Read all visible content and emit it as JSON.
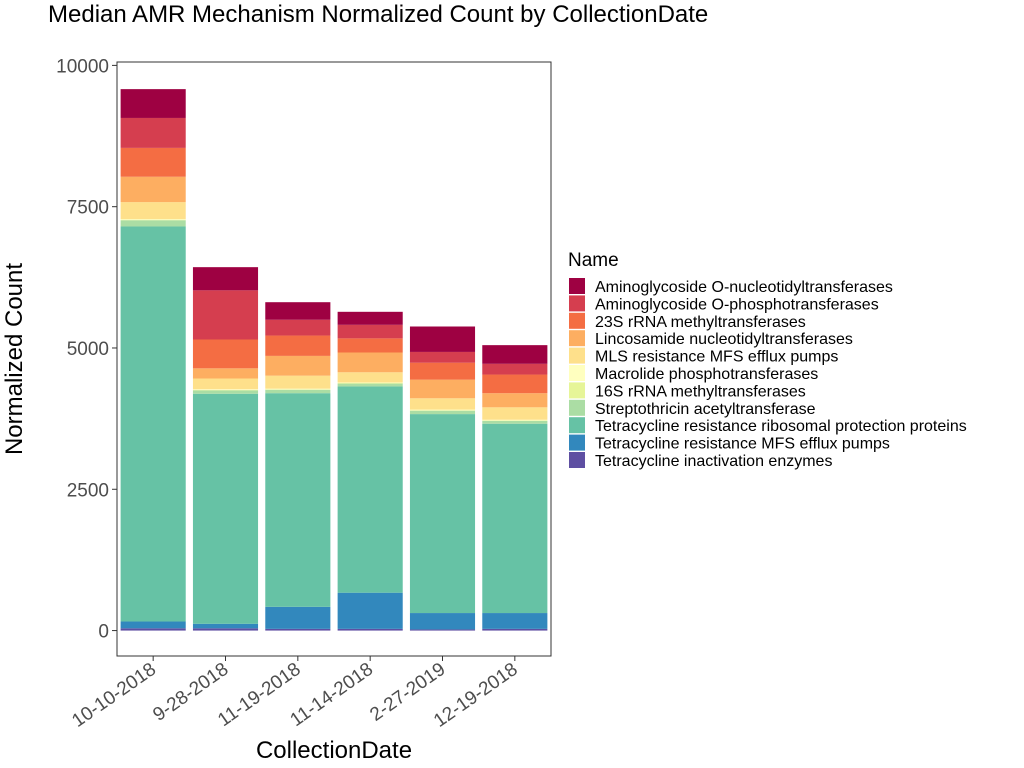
{
  "chart_data": {
    "type": "bar",
    "stacked": true,
    "title": "Median AMR Mechanism Normalized Count by CollectionDate",
    "xlabel": "CollectionDate",
    "ylabel": "Normalized Count",
    "ylim": [
      -450,
      10060
    ],
    "yticks": [
      0,
      2500,
      5000,
      7500,
      10000
    ],
    "grid": false,
    "legend_position": "right",
    "legend_title": "Name",
    "categories": [
      "10-10-2018",
      "9-28-2018",
      "11-19-2018",
      "11-14-2018",
      "2-27-2019",
      "12-19-2018"
    ],
    "series": [
      {
        "name": "Tetracycline inactivation enzymes",
        "color": "#5E4FA2",
        "values": [
          40,
          40,
          30,
          30,
          20,
          30
        ]
      },
      {
        "name": "Tetracycline resistance MFS efflux pumps",
        "color": "#3288BD",
        "values": [
          120,
          80,
          390,
          640,
          290,
          280
        ]
      },
      {
        "name": "Tetracycline resistance ribosomal protection proteins",
        "color": "#66C2A5",
        "values": [
          6990,
          4070,
          3780,
          3650,
          3520,
          3350
        ]
      },
      {
        "name": "Streptothricin acetyltransferase",
        "color": "#ABDDA4",
        "values": [
          110,
          60,
          60,
          50,
          60,
          50
        ]
      },
      {
        "name": "16S rRNA methyltransferases",
        "color": "#E6F598",
        "values": [
          10,
          10,
          10,
          10,
          10,
          10
        ]
      },
      {
        "name": "Macrolide phosphotransferases",
        "color": "#FFFFBF",
        "values": [
          10,
          10,
          10,
          10,
          10,
          10
        ]
      },
      {
        "name": "MLS resistance MFS efflux pumps",
        "color": "#FEE08B",
        "values": [
          300,
          190,
          230,
          180,
          200,
          220
        ]
      },
      {
        "name": "Lincosamide nucleotidyltransferases",
        "color": "#FDAE61",
        "values": [
          450,
          180,
          350,
          350,
          330,
          250
        ]
      },
      {
        "name": "23S rRNA methyltransferases",
        "color": "#F46D43",
        "values": [
          510,
          510,
          360,
          250,
          300,
          330
        ]
      },
      {
        "name": "Aminoglycoside O-phosphotransferases",
        "color": "#D53E4F",
        "values": [
          530,
          870,
          280,
          240,
          190,
          190
        ]
      },
      {
        "name": "Aminoglycoside O-nucleotidyltransferases",
        "color": "#9E0142",
        "values": [
          510,
          410,
          310,
          230,
          450,
          330
        ]
      }
    ]
  }
}
